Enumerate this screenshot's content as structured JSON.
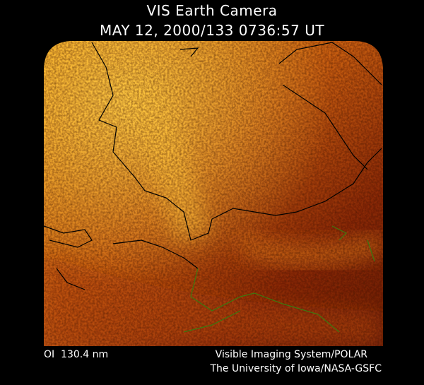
{
  "header": {
    "title": "VIS Earth Camera",
    "timestamp": "MAY 12, 2000/133 0736:57 UT"
  },
  "footer": {
    "filter": "OI  130.4 nm",
    "instrument": "Visible Imaging System/POLAR",
    "institution": "The University of Iowa/NASA-GSFC"
  }
}
